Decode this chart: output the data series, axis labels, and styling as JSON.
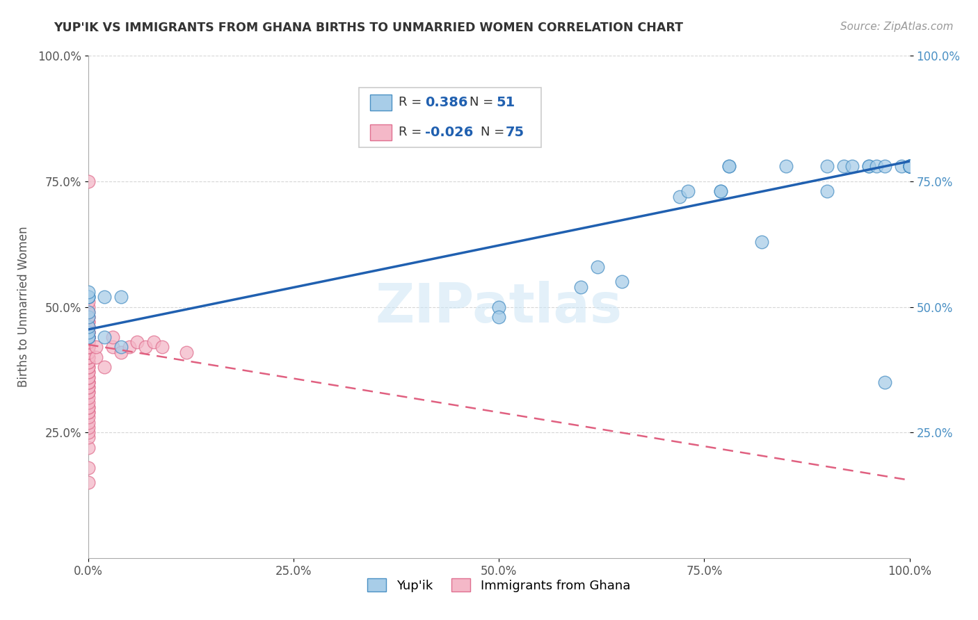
{
  "title": "YUP'IK VS IMMIGRANTS FROM GHANA BIRTHS TO UNMARRIED WOMEN CORRELATION CHART",
  "source": "Source: ZipAtlas.com",
  "ylabel": "Births to Unmarried Women",
  "xlim": [
    0,
    1
  ],
  "ylim": [
    0,
    1
  ],
  "xticks": [
    0.0,
    0.25,
    0.5,
    0.75,
    1.0
  ],
  "yticks": [
    0.25,
    0.5,
    0.75,
    1.0
  ],
  "xtick_labels": [
    "0.0%",
    "25.0%",
    "50.0%",
    "75.0%",
    "100.0%"
  ],
  "ytick_labels": [
    "25.0%",
    "50.0%",
    "75.0%",
    "100.0%"
  ],
  "color_blue": "#a8cde8",
  "color_pink": "#f4b8c8",
  "edge_blue": "#4a90c4",
  "edge_pink": "#e07090",
  "trend_blue_color": "#2060b0",
  "trend_pink_color": "#e06080",
  "background": "#ffffff",
  "watermark": "ZIPatlas",
  "yupik_x": [
    0.0,
    0.0,
    0.0,
    0.0,
    0.0,
    0.0,
    0.0,
    0.0,
    0.0,
    0.0,
    0.02,
    0.02,
    0.04,
    0.04,
    0.5,
    0.5,
    0.6,
    0.62,
    0.65,
    0.72,
    0.73,
    0.77,
    0.77,
    0.78,
    0.78,
    0.82,
    0.85,
    0.9,
    0.9,
    0.92,
    0.93,
    0.95,
    0.95,
    0.96,
    0.97,
    0.97,
    0.99,
    1.0,
    1.0,
    1.0,
    1.0,
    1.0,
    1.0,
    1.0,
    1.0,
    1.0,
    1.0,
    1.0,
    1.0,
    1.0,
    1.0
  ],
  "yupik_y": [
    0.44,
    0.44,
    0.45,
    0.46,
    0.48,
    0.49,
    0.52,
    0.52,
    0.52,
    0.53,
    0.44,
    0.52,
    0.42,
    0.52,
    0.5,
    0.48,
    0.54,
    0.58,
    0.55,
    0.72,
    0.73,
    0.73,
    0.73,
    0.78,
    0.78,
    0.63,
    0.78,
    0.73,
    0.78,
    0.78,
    0.78,
    0.78,
    0.78,
    0.78,
    0.78,
    0.35,
    0.78,
    0.78,
    0.78,
    0.78,
    0.78,
    0.78,
    0.78,
    0.78,
    0.78,
    0.78,
    0.78,
    0.78,
    0.78,
    0.78,
    0.78
  ],
  "ghana_x": [
    0.0,
    0.0,
    0.0,
    0.0,
    0.0,
    0.0,
    0.0,
    0.0,
    0.0,
    0.0,
    0.0,
    0.0,
    0.0,
    0.0,
    0.0,
    0.0,
    0.0,
    0.0,
    0.0,
    0.0,
    0.0,
    0.0,
    0.0,
    0.0,
    0.0,
    0.0,
    0.0,
    0.0,
    0.0,
    0.0,
    0.0,
    0.0,
    0.0,
    0.0,
    0.0,
    0.0,
    0.0,
    0.0,
    0.0,
    0.0,
    0.0,
    0.0,
    0.0,
    0.0,
    0.0,
    0.0,
    0.0,
    0.0,
    0.0,
    0.0,
    0.0,
    0.0,
    0.0,
    0.0,
    0.0,
    0.0,
    0.0,
    0.0,
    0.0,
    0.0,
    0.0,
    0.0,
    0.0,
    0.01,
    0.01,
    0.02,
    0.03,
    0.03,
    0.04,
    0.05,
    0.06,
    0.07,
    0.08,
    0.09,
    0.12
  ],
  "ghana_y": [
    0.15,
    0.18,
    0.22,
    0.24,
    0.25,
    0.26,
    0.27,
    0.28,
    0.29,
    0.29,
    0.3,
    0.3,
    0.31,
    0.32,
    0.33,
    0.33,
    0.34,
    0.34,
    0.35,
    0.35,
    0.35,
    0.36,
    0.36,
    0.37,
    0.37,
    0.38,
    0.38,
    0.39,
    0.39,
    0.4,
    0.4,
    0.4,
    0.41,
    0.41,
    0.41,
    0.42,
    0.42,
    0.42,
    0.42,
    0.43,
    0.43,
    0.43,
    0.43,
    0.44,
    0.44,
    0.44,
    0.44,
    0.44,
    0.44,
    0.44,
    0.45,
    0.45,
    0.45,
    0.46,
    0.46,
    0.47,
    0.47,
    0.48,
    0.48,
    0.49,
    0.5,
    0.51,
    0.75,
    0.4,
    0.42,
    0.38,
    0.42,
    0.44,
    0.41,
    0.42,
    0.43,
    0.42,
    0.43,
    0.42,
    0.41
  ],
  "blue_trend_x0": 0.0,
  "blue_trend_y0": 0.455,
  "blue_trend_x1": 1.0,
  "blue_trend_y1": 0.79,
  "pink_trend_x0": 0.0,
  "pink_trend_y0": 0.425,
  "pink_trend_x1": 1.0,
  "pink_trend_y1": 0.155
}
